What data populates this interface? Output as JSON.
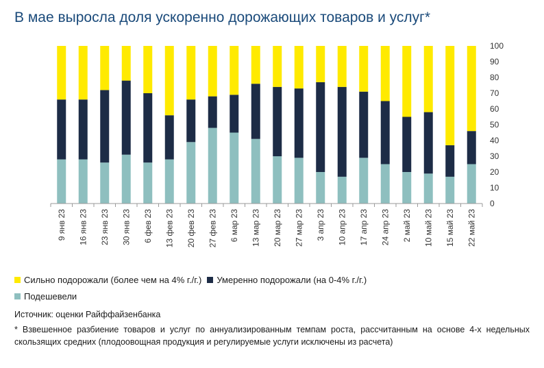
{
  "title": "В мае выросла доля ускоренно дорожающих товаров и услуг*",
  "colors": {
    "strong": "#ffea00",
    "moderate": "#1d2c46",
    "cheaper": "#8ebfbf"
  },
  "legend": {
    "strong": "Сильно подорожали (более чем на 4% г./г.)",
    "moderate": "Умеренно подорожали (на 0-4% г./г.)",
    "cheaper": "Подешевели"
  },
  "source": "Источник: оценки Райффайзенбанка",
  "note": "* Взвешенное разбиение товаров и услуг по аннуализированным темпам роста, рассчитанным на основе 4-х недельных скользящих средних (плодоовощная продукция и регулируемые услуги исключены из расчета)",
  "chart_data": {
    "type": "bar",
    "stacked": true,
    "categories": [
      "9 янв 23",
      "16 янв 23",
      "23 янв 23",
      "30 янв 23",
      "6 фев 23",
      "13 фев 23",
      "20 фев 23",
      "27 фев 23",
      "6 мар 23",
      "13 мар 23",
      "20 мар 23",
      "27 мар 23",
      "3 апр 23",
      "10 апр 23",
      "17 апр 23",
      "24 апр 23",
      "2 май 23",
      "10 май 23",
      "15 май 23",
      "22 май 23"
    ],
    "series": [
      {
        "name": "Подешевели",
        "values": [
          28,
          28,
          26,
          31,
          26,
          28,
          39,
          48,
          45,
          41,
          30,
          29,
          20,
          17,
          29,
          25,
          20,
          19,
          17,
          25
        ]
      },
      {
        "name": "Умеренно подорожали (на 0-4% г./г.)",
        "values": [
          38,
          38,
          46,
          47,
          44,
          28,
          27,
          20,
          24,
          35,
          44,
          44,
          57,
          57,
          42,
          40,
          35,
          39,
          20,
          21
        ]
      },
      {
        "name": "Сильно подорожали (более чем на 4% г./г.)",
        "values": [
          34,
          34,
          28,
          22,
          30,
          44,
          34,
          32,
          31,
          24,
          26,
          27,
          23,
          26,
          29,
          35,
          45,
          42,
          63,
          54
        ]
      }
    ],
    "ylim": [
      0,
      100
    ],
    "yticks": [
      0,
      10,
      20,
      30,
      40,
      50,
      60,
      70,
      80,
      90,
      100
    ],
    "y_axis_side": "right",
    "grid": false,
    "legend_position": "bottom"
  }
}
